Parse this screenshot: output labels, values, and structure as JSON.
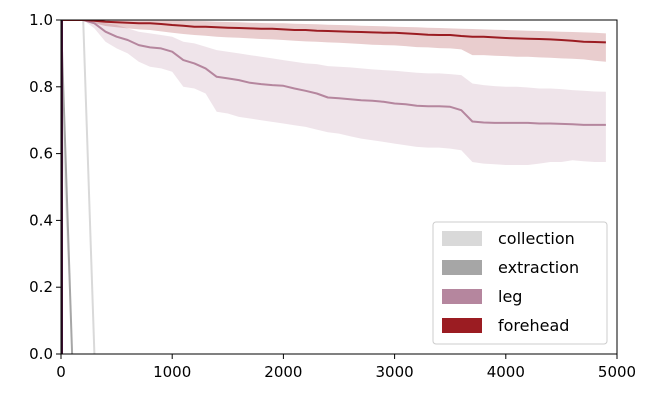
{
  "chart_data": {
    "type": "line",
    "title": "",
    "xlabel": "",
    "ylabel": "",
    "xlim": [
      0,
      5000
    ],
    "ylim": [
      0,
      1.0
    ],
    "xticks": [
      0,
      1000,
      2000,
      3000,
      4000,
      5000
    ],
    "yticks": [
      0.0,
      0.2,
      0.4,
      0.6,
      0.8,
      1.0
    ],
    "xtick_labels": [
      "0",
      "1000",
      "2000",
      "3000",
      "4000",
      "5000"
    ],
    "ytick_labels": [
      "0.0",
      "0.2",
      "0.4",
      "0.6",
      "0.8",
      "1.0"
    ],
    "grid": false,
    "legend_position": "bottom-right",
    "series": [
      {
        "name": "collection",
        "color": "#d9d9d9",
        "x": [
          0,
          200,
          300
        ],
        "y": [
          1.0,
          1.0,
          0.0
        ],
        "lower": [
          1.0,
          1.0,
          0.0
        ],
        "upper": [
          1.0,
          1.0,
          0.0
        ]
      },
      {
        "name": "extraction",
        "color": "#a6a6a6",
        "x": [
          0,
          100
        ],
        "y": [
          1.0,
          0.0
        ],
        "lower": [
          0.7,
          0.0
        ],
        "upper": [
          1.0,
          0.0
        ]
      },
      {
        "name": "leg",
        "color": "#b5869e",
        "x": [
          0,
          200,
          300,
          400,
          500,
          600,
          700,
          800,
          900,
          1000,
          1100,
          1200,
          1300,
          1400,
          1500,
          1600,
          1700,
          1800,
          1900,
          2000,
          2100,
          2200,
          2300,
          2400,
          2500,
          2600,
          2700,
          2800,
          2900,
          3000,
          3100,
          3200,
          3300,
          3400,
          3500,
          3600,
          3700,
          3800,
          3900,
          4000,
          4100,
          4200,
          4300,
          4400,
          4500,
          4600,
          4700,
          4800,
          4900
        ],
        "y": [
          1.0,
          1.0,
          0.99,
          0.965,
          0.95,
          0.94,
          0.925,
          0.918,
          0.915,
          0.905,
          0.88,
          0.87,
          0.855,
          0.83,
          0.825,
          0.82,
          0.812,
          0.808,
          0.805,
          0.803,
          0.795,
          0.788,
          0.78,
          0.768,
          0.766,
          0.763,
          0.76,
          0.758,
          0.755,
          0.75,
          0.748,
          0.743,
          0.742,
          0.742,
          0.74,
          0.73,
          0.696,
          0.693,
          0.692,
          0.692,
          0.692,
          0.692,
          0.69,
          0.69,
          0.689,
          0.688,
          0.686,
          0.686,
          0.686
        ],
        "lower": [
          1.0,
          1.0,
          0.975,
          0.935,
          0.915,
          0.9,
          0.875,
          0.86,
          0.855,
          0.845,
          0.8,
          0.795,
          0.78,
          0.725,
          0.72,
          0.71,
          0.705,
          0.7,
          0.695,
          0.69,
          0.685,
          0.68,
          0.672,
          0.664,
          0.66,
          0.652,
          0.645,
          0.64,
          0.635,
          0.63,
          0.625,
          0.62,
          0.618,
          0.618,
          0.615,
          0.61,
          0.575,
          0.57,
          0.568,
          0.566,
          0.566,
          0.566,
          0.57,
          0.575,
          0.575,
          0.58,
          0.577,
          0.575,
          0.575
        ],
        "upper": [
          1.0,
          1.0,
          1.0,
          0.99,
          0.985,
          0.975,
          0.965,
          0.96,
          0.955,
          0.95,
          0.935,
          0.93,
          0.92,
          0.91,
          0.905,
          0.9,
          0.895,
          0.89,
          0.885,
          0.88,
          0.875,
          0.87,
          0.868,
          0.862,
          0.86,
          0.858,
          0.855,
          0.852,
          0.85,
          0.848,
          0.845,
          0.842,
          0.84,
          0.84,
          0.838,
          0.835,
          0.81,
          0.805,
          0.802,
          0.8,
          0.8,
          0.798,
          0.795,
          0.795,
          0.793,
          0.79,
          0.788,
          0.786,
          0.785
        ]
      },
      {
        "name": "forehead",
        "color": "#9b1c22",
        "x": [
          0,
          200,
          300,
          400,
          500,
          600,
          700,
          800,
          900,
          1000,
          1100,
          1200,
          1300,
          1400,
          1500,
          1600,
          1700,
          1800,
          1900,
          2000,
          2100,
          2200,
          2300,
          2400,
          2500,
          2600,
          2700,
          2800,
          2900,
          3000,
          3100,
          3200,
          3300,
          3400,
          3500,
          3600,
          3700,
          3800,
          3900,
          4000,
          4100,
          4200,
          4300,
          4400,
          4500,
          4600,
          4700,
          4800,
          4900
        ],
        "y": [
          1.0,
          1.0,
          0.998,
          0.995,
          0.993,
          0.992,
          0.99,
          0.99,
          0.988,
          0.985,
          0.983,
          0.98,
          0.98,
          0.978,
          0.977,
          0.976,
          0.975,
          0.974,
          0.974,
          0.972,
          0.97,
          0.97,
          0.968,
          0.967,
          0.966,
          0.965,
          0.964,
          0.963,
          0.962,
          0.962,
          0.96,
          0.958,
          0.956,
          0.955,
          0.955,
          0.952,
          0.95,
          0.95,
          0.948,
          0.946,
          0.945,
          0.944,
          0.943,
          0.942,
          0.94,
          0.938,
          0.935,
          0.934,
          0.933
        ],
        "lower": [
          1.0,
          1.0,
          0.99,
          0.982,
          0.978,
          0.975,
          0.972,
          0.97,
          0.966,
          0.962,
          0.958,
          0.955,
          0.953,
          0.95,
          0.948,
          0.947,
          0.945,
          0.943,
          0.942,
          0.94,
          0.938,
          0.936,
          0.935,
          0.933,
          0.932,
          0.93,
          0.928,
          0.926,
          0.925,
          0.924,
          0.922,
          0.919,
          0.918,
          0.916,
          0.915,
          0.912,
          0.895,
          0.895,
          0.893,
          0.892,
          0.89,
          0.89,
          0.888,
          0.887,
          0.885,
          0.884,
          0.882,
          0.878,
          0.875
        ],
        "upper": [
          1.0,
          1.0,
          1.0,
          1.0,
          1.0,
          1.0,
          1.0,
          1.0,
          1.0,
          1.0,
          0.998,
          0.997,
          0.996,
          0.995,
          0.994,
          0.993,
          0.992,
          0.991,
          0.99,
          0.99,
          0.989,
          0.988,
          0.987,
          0.986,
          0.985,
          0.984,
          0.983,
          0.982,
          0.981,
          0.98,
          0.979,
          0.978,
          0.977,
          0.976,
          0.975,
          0.974,
          0.973,
          0.972,
          0.971,
          0.97,
          0.969,
          0.968,
          0.967,
          0.966,
          0.965,
          0.964,
          0.963,
          0.962,
          0.96
        ]
      }
    ]
  }
}
